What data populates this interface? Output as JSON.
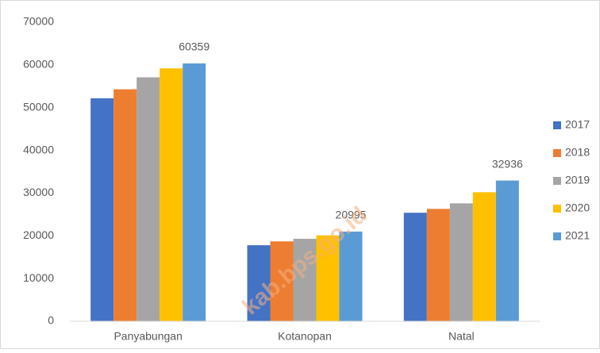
{
  "chart_data": {
    "type": "bar",
    "categories": [
      "Panyabungan",
      "Kotanopan",
      "Natal"
    ],
    "series": [
      {
        "name": "2017",
        "color": "#4472c4",
        "values": [
          52200,
          17800,
          25400
        ]
      },
      {
        "name": "2018",
        "color": "#ed7d31",
        "values": [
          54300,
          18700,
          26300
        ]
      },
      {
        "name": "2019",
        "color": "#a5a5a5",
        "values": [
          57100,
          19300,
          27600
        ]
      },
      {
        "name": "2020",
        "color": "#ffc000",
        "values": [
          59200,
          20100,
          30200
        ]
      },
      {
        "name": "2021",
        "color": "#5b9bd5",
        "values": [
          60359,
          20995,
          32936
        ],
        "show_labels": true
      }
    ],
    "ylim": [
      0,
      70000
    ],
    "yticks": [
      0,
      10000,
      20000,
      30000,
      40000,
      50000,
      60000,
      70000
    ],
    "grid": false,
    "legend": "right",
    "watermark": "kab.bps.go.id"
  }
}
